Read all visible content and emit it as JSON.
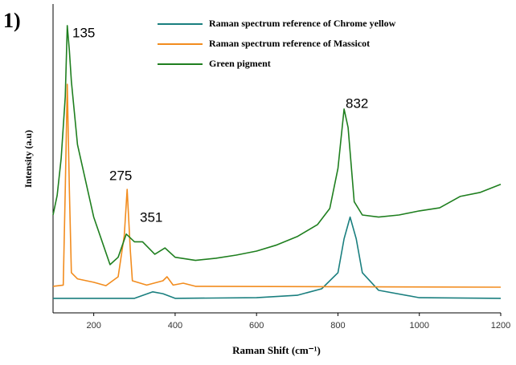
{
  "chart_data": {
    "type": "line",
    "panel_label": "1)",
    "y_label": "Intensity (a.u)",
    "x_label": "Raman Shift (cm⁻¹)",
    "xlim": [
      100,
      1200
    ],
    "ylim": [
      0,
      100
    ],
    "xticks": [
      200,
      400,
      600,
      800,
      1000,
      1200
    ],
    "annotations": [
      "135",
      "275",
      "351",
      "832"
    ],
    "series": [
      {
        "name": "Raman spectrum reference  of Chrome yellow",
        "color": "#1a7f7f",
        "x": [
          100,
          300,
          345,
          370,
          400,
          600,
          700,
          760,
          800,
          815,
          830,
          845,
          860,
          900,
          1000,
          1200
        ],
        "values": [
          4.7,
          4.7,
          6.8,
          6.2,
          4.7,
          4.9,
          5.7,
          7.8,
          13,
          24,
          31,
          24,
          13,
          7.3,
          4.9,
          4.7
        ]
      },
      {
        "name": "Raman spectrum reference of Massicot",
        "color": "#f28c1e",
        "x": [
          100,
          125,
          130,
          135,
          140,
          145,
          160,
          200,
          230,
          260,
          275,
          282,
          290,
          295,
          330,
          370,
          380,
          395,
          420,
          450,
          1200
        ],
        "values": [
          8.6,
          9,
          40,
          74,
          40,
          13,
          11,
          9.9,
          8.8,
          11.7,
          25,
          40,
          20,
          10.4,
          9,
          10.4,
          11.7,
          9,
          9.6,
          8.6,
          8.3
        ]
      },
      {
        "name": "Green pigment",
        "color": "#1f7f1f",
        "x": [
          100,
          110,
          120,
          130,
          135,
          140,
          145,
          160,
          200,
          240,
          260,
          280,
          300,
          320,
          350,
          375,
          400,
          450,
          500,
          550,
          600,
          650,
          700,
          750,
          780,
          800,
          815,
          825,
          840,
          860,
          900,
          950,
          1000,
          1050,
          1100,
          1150,
          1200
        ],
        "values": [
          31.7,
          38,
          50,
          70,
          93,
          85,
          75,
          54.5,
          31,
          15.6,
          18,
          25.5,
          23,
          23,
          19,
          21,
          18,
          17,
          17.7,
          18.7,
          20,
          22,
          24.7,
          28.6,
          33.8,
          46.8,
          66,
          60,
          36,
          31.7,
          31,
          31.7,
          33,
          34,
          37.7,
          39,
          41.6
        ]
      }
    ]
  }
}
